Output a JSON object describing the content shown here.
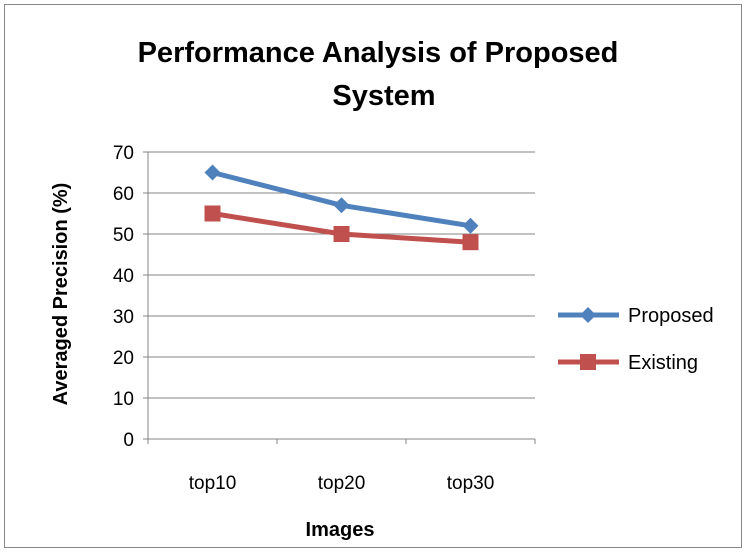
{
  "chart_data": {
    "type": "line",
    "title_lines": [
      "Performance Analysis of Proposed",
      "System"
    ],
    "xlabel": "Images",
    "ylabel": "Averaged Precision (%)",
    "categories": [
      "top10",
      "top20",
      "top30"
    ],
    "ylim": [
      0,
      70
    ],
    "yticks": [
      0,
      10,
      20,
      30,
      40,
      50,
      60,
      70
    ],
    "grid": true,
    "legend_position": "right",
    "series": [
      {
        "name": "Proposed",
        "values": [
          65,
          57,
          52
        ],
        "color": "#4F81BD",
        "marker": "diamond"
      },
      {
        "name": "Existing",
        "values": [
          55,
          50,
          48
        ],
        "color": "#C0504D",
        "marker": "square"
      }
    ]
  }
}
